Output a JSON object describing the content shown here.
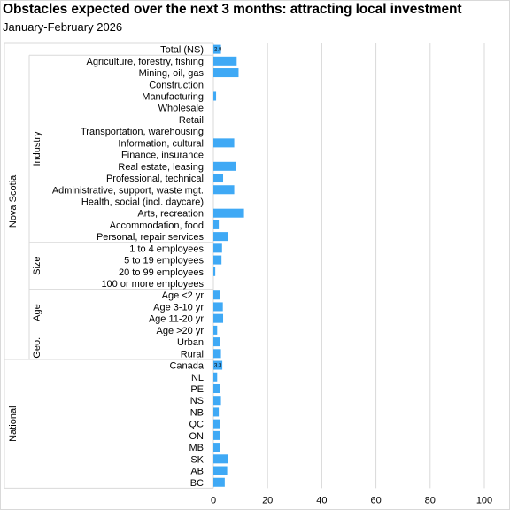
{
  "title": "Obstacles expected over the next 3 months:  attracting local investment",
  "subtitle": "January-February  2026",
  "colors": {
    "bar": "#3fa9f5",
    "grid": "#d9d9d9",
    "text": "#000000"
  },
  "chart_data": {
    "type": "bar",
    "orientation": "horizontal",
    "title": "Obstacles expected over the next 3 months:  attracting local investment",
    "subtitle": "January-February  2026",
    "xlabel": "",
    "ylabel": "",
    "xlim": [
      0,
      100
    ],
    "xticks": [
      "0",
      "20",
      "40",
      "60",
      "80",
      "100"
    ],
    "grid": true,
    "legend": "none",
    "rows": [
      {
        "label": "Total (NS)",
        "value": 2.8,
        "data_label": "2.8",
        "outer": "Nova Scotia",
        "group": ""
      },
      {
        "label": "Agriculture, forestry, fishing",
        "value": 8.6,
        "outer": "Nova Scotia",
        "group": "Industry"
      },
      {
        "label": "Mining, oil, gas",
        "value": 9.3,
        "outer": "Nova Scotia",
        "group": "Industry"
      },
      {
        "label": "Construction",
        "value": 0,
        "outer": "Nova Scotia",
        "group": "Industry"
      },
      {
        "label": "Manufacturing",
        "value": 1.0,
        "outer": "Nova Scotia",
        "group": "Industry"
      },
      {
        "label": "Wholesale",
        "value": 0,
        "outer": "Nova Scotia",
        "group": "Industry"
      },
      {
        "label": "Retail",
        "value": 0,
        "outer": "Nova Scotia",
        "group": "Industry"
      },
      {
        "label": "Transportation, warehousing",
        "value": 0,
        "outer": "Nova Scotia",
        "group": "Industry"
      },
      {
        "label": "Information, cultural",
        "value": 7.7,
        "outer": "Nova Scotia",
        "group": "Industry"
      },
      {
        "label": "Finance, insurance",
        "value": 0,
        "outer": "Nova Scotia",
        "group": "Industry"
      },
      {
        "label": "Real estate, leasing",
        "value": 8.3,
        "outer": "Nova Scotia",
        "group": "Industry"
      },
      {
        "label": "Professional, technical",
        "value": 3.6,
        "outer": "Nova Scotia",
        "group": "Industry"
      },
      {
        "label": "Administrative, support, waste mgt.",
        "value": 7.7,
        "outer": "Nova Scotia",
        "group": "Industry"
      },
      {
        "label": "Health, social (incl. daycare)",
        "value": 0,
        "outer": "Nova Scotia",
        "group": "Industry"
      },
      {
        "label": "Arts, recreation",
        "value": 11.3,
        "outer": "Nova Scotia",
        "group": "Industry"
      },
      {
        "label": "Accommodation, food",
        "value": 2.0,
        "outer": "Nova Scotia",
        "group": "Industry"
      },
      {
        "label": "Personal, repair services",
        "value": 5.4,
        "outer": "Nova Scotia",
        "group": "Industry"
      },
      {
        "label": "1 to 4 employees",
        "value": 3.2,
        "outer": "Nova Scotia",
        "group": "Size"
      },
      {
        "label": "5 to 19 employees",
        "value": 3.0,
        "outer": "Nova Scotia",
        "group": "Size"
      },
      {
        "label": "20 to 99 employees",
        "value": 0.7,
        "outer": "Nova Scotia",
        "group": "Size"
      },
      {
        "label": "100 or more employees",
        "value": 0,
        "outer": "Nova Scotia",
        "group": "Size"
      },
      {
        "label": "Age <2 yr",
        "value": 2.4,
        "outer": "Nova Scotia",
        "group": "Age"
      },
      {
        "label": "Age 3-10 yr",
        "value": 3.5,
        "outer": "Nova Scotia",
        "group": "Age"
      },
      {
        "label": "Age 11-20 yr",
        "value": 3.6,
        "outer": "Nova Scotia",
        "group": "Age"
      },
      {
        "label": "Age >20 yr",
        "value": 1.4,
        "outer": "Nova Scotia",
        "group": "Age"
      },
      {
        "label": "Urban",
        "value": 2.6,
        "outer": "Nova Scotia",
        "group": "Geo."
      },
      {
        "label": "Rural",
        "value": 2.8,
        "outer": "Nova Scotia",
        "group": "Geo."
      },
      {
        "label": "Canada",
        "value": 3.3,
        "data_label": "3.3",
        "outer": "National",
        "group": ""
      },
      {
        "label": "NL",
        "value": 1.4,
        "outer": "National",
        "group": ""
      },
      {
        "label": "PE",
        "value": 2.4,
        "outer": "National",
        "group": ""
      },
      {
        "label": "NS",
        "value": 2.8,
        "outer": "National",
        "group": ""
      },
      {
        "label": "NB",
        "value": 2.0,
        "outer": "National",
        "group": ""
      },
      {
        "label": "QC",
        "value": 2.5,
        "outer": "National",
        "group": ""
      },
      {
        "label": "ON",
        "value": 2.5,
        "outer": "National",
        "group": ""
      },
      {
        "label": "MB",
        "value": 2.4,
        "outer": "National",
        "group": ""
      },
      {
        "label": "SK",
        "value": 5.4,
        "outer": "National",
        "group": ""
      },
      {
        "label": "AB",
        "value": 5.1,
        "outer": "National",
        "group": ""
      },
      {
        "label": "BC",
        "value": 4.2,
        "outer": "National",
        "group": ""
      }
    ],
    "groups": [
      {
        "name": "Industry",
        "first": 1,
        "last": 16
      },
      {
        "name": "Size",
        "first": 17,
        "last": 20
      },
      {
        "name": "Age",
        "first": 21,
        "last": 24
      },
      {
        "name": "Geo.",
        "first": 25,
        "last": 26
      }
    ],
    "outer_groups": [
      {
        "name": "Nova Scotia",
        "first": 0,
        "last": 26
      },
      {
        "name": "National",
        "first": 27,
        "last": 37
      }
    ]
  }
}
